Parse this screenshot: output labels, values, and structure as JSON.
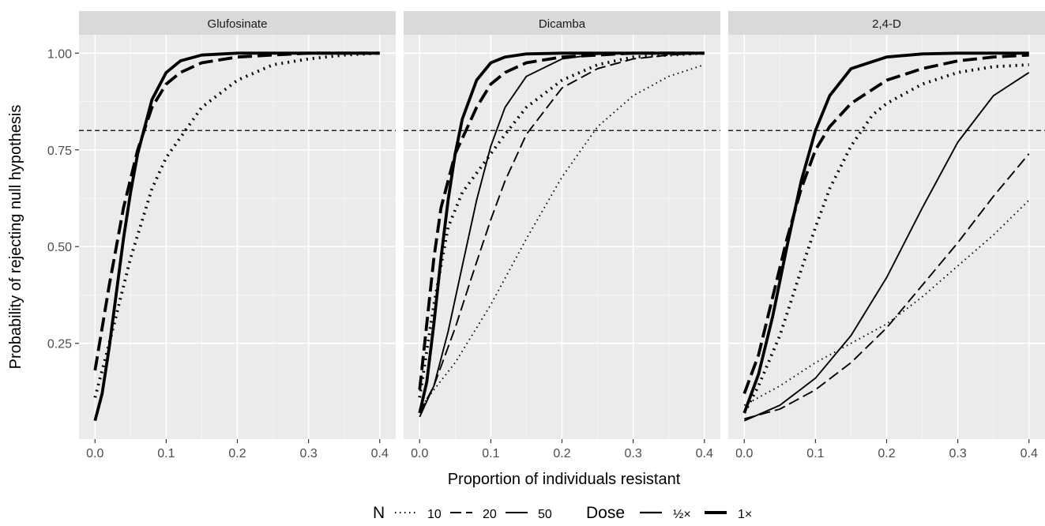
{
  "chart_data": {
    "type": "line",
    "xlabel": "Proportion of individuals resistant",
    "ylabel": "Probability of rejecting null hypothesis",
    "xlim": [
      0,
      0.4
    ],
    "ylim": [
      0.05,
      1.0
    ],
    "x_ticks": [
      "0.0",
      "0.1",
      "0.2",
      "0.3",
      "0.4"
    ],
    "y_ticks": [
      "0.25",
      "0.50",
      "0.75",
      "1.00"
    ],
    "reference_line": {
      "y": 0.8,
      "style": "dashed"
    },
    "grid": true,
    "facets": [
      "Glufosinate",
      "Dicamba",
      "2,4-D"
    ],
    "legend": {
      "position": "bottom",
      "n_title": "N",
      "n_entries": [
        {
          "label": "10",
          "dash": "dotted"
        },
        {
          "label": "20",
          "dash": "dashed"
        },
        {
          "label": "50",
          "dash": "solid"
        }
      ],
      "dose_title": "Dose",
      "dose_entries": [
        {
          "label": "½×",
          "weight": "thin"
        },
        {
          "label": "1×",
          "weight": "thick"
        }
      ]
    },
    "panels": [
      {
        "facet": "Glufosinate",
        "series": [
          {
            "n": "10",
            "dose": "1×",
            "x": [
              0,
              0.02,
              0.05,
              0.08,
              0.1,
              0.15,
              0.2,
              0.25,
              0.3,
              0.35,
              0.4
            ],
            "y": [
              0.11,
              0.25,
              0.47,
              0.65,
              0.73,
              0.86,
              0.93,
              0.97,
              0.985,
              0.995,
              1.0
            ]
          },
          {
            "n": "20",
            "dose": "1×",
            "x": [
              0,
              0.02,
              0.04,
              0.06,
              0.08,
              0.1,
              0.12,
              0.15,
              0.2,
              0.25,
              0.3,
              0.4
            ],
            "y": [
              0.18,
              0.4,
              0.6,
              0.75,
              0.86,
              0.92,
              0.95,
              0.975,
              0.99,
              0.995,
              1.0,
              1.0
            ]
          },
          {
            "n": "50",
            "dose": "1×",
            "x": [
              0,
              0.01,
              0.02,
              0.03,
              0.04,
              0.05,
              0.06,
              0.08,
              0.1,
              0.12,
              0.15,
              0.2,
              0.3,
              0.4
            ],
            "y": [
              0.05,
              0.12,
              0.24,
              0.38,
              0.52,
              0.64,
              0.74,
              0.88,
              0.95,
              0.98,
              0.995,
              1.0,
              1.0,
              1.0
            ]
          }
        ]
      },
      {
        "facet": "Dicamba",
        "series": [
          {
            "n": "10",
            "dose": "½×",
            "x": [
              0,
              0.02,
              0.05,
              0.08,
              0.1,
              0.15,
              0.2,
              0.25,
              0.3,
              0.35,
              0.4
            ],
            "y": [
              0.08,
              0.13,
              0.2,
              0.29,
              0.35,
              0.52,
              0.68,
              0.81,
              0.89,
              0.94,
              0.97
            ]
          },
          {
            "n": "20",
            "dose": "½×",
            "x": [
              0,
              0.02,
              0.05,
              0.08,
              0.1,
              0.12,
              0.15,
              0.2,
              0.25,
              0.3,
              0.35,
              0.4
            ],
            "y": [
              0.07,
              0.14,
              0.29,
              0.46,
              0.57,
              0.67,
              0.79,
              0.91,
              0.96,
              0.985,
              0.995,
              1.0
            ]
          },
          {
            "n": "50",
            "dose": "½×",
            "x": [
              0,
              0.02,
              0.04,
              0.06,
              0.08,
              0.1,
              0.12,
              0.15,
              0.2,
              0.25,
              0.3,
              0.4
            ],
            "y": [
              0.06,
              0.14,
              0.28,
              0.45,
              0.62,
              0.76,
              0.86,
              0.94,
              0.985,
              0.997,
              1.0,
              1.0
            ]
          },
          {
            "n": "10",
            "dose": "1×",
            "x": [
              0,
              0.02,
              0.04,
              0.06,
              0.08,
              0.1,
              0.12,
              0.15,
              0.2,
              0.25,
              0.3,
              0.35,
              0.4
            ],
            "y": [
              0.11,
              0.35,
              0.55,
              0.64,
              0.69,
              0.74,
              0.79,
              0.86,
              0.93,
              0.97,
              0.99,
              0.995,
              1.0
            ]
          },
          {
            "n": "20",
            "dose": "1×",
            "x": [
              0,
              0.01,
              0.02,
              0.03,
              0.05,
              0.07,
              0.08,
              0.1,
              0.12,
              0.15,
              0.2,
              0.3,
              0.4
            ],
            "y": [
              0.13,
              0.3,
              0.47,
              0.6,
              0.74,
              0.82,
              0.86,
              0.92,
              0.95,
              0.975,
              0.99,
              1.0,
              1.0
            ]
          },
          {
            "n": "50",
            "dose": "1×",
            "x": [
              0,
              0.01,
              0.02,
              0.03,
              0.04,
              0.05,
              0.06,
              0.08,
              0.1,
              0.12,
              0.15,
              0.2,
              0.3,
              0.4
            ],
            "y": [
              0.07,
              0.15,
              0.3,
              0.47,
              0.62,
              0.74,
              0.83,
              0.93,
              0.975,
              0.99,
              0.998,
              1.0,
              1.0,
              1.0
            ]
          }
        ]
      },
      {
        "facet": "2,4-D",
        "series": [
          {
            "n": "10",
            "dose": "½×",
            "x": [
              0,
              0.05,
              0.1,
              0.15,
              0.2,
              0.25,
              0.3,
              0.35,
              0.4
            ],
            "y": [
              0.09,
              0.14,
              0.2,
              0.25,
              0.3,
              0.37,
              0.45,
              0.53,
              0.62
            ]
          },
          {
            "n": "20",
            "dose": "½×",
            "x": [
              0,
              0.05,
              0.1,
              0.15,
              0.2,
              0.25,
              0.3,
              0.35,
              0.4
            ],
            "y": [
              0.055,
              0.08,
              0.13,
              0.2,
              0.29,
              0.4,
              0.51,
              0.63,
              0.74
            ]
          },
          {
            "n": "50",
            "dose": "½×",
            "x": [
              0,
              0.05,
              0.1,
              0.15,
              0.2,
              0.25,
              0.3,
              0.35,
              0.4
            ],
            "y": [
              0.05,
              0.09,
              0.16,
              0.27,
              0.42,
              0.6,
              0.77,
              0.89,
              0.95
            ]
          },
          {
            "n": "10",
            "dose": "1×",
            "x": [
              0,
              0.02,
              0.05,
              0.08,
              0.1,
              0.12,
              0.15,
              0.18,
              0.2,
              0.25,
              0.3,
              0.35,
              0.4
            ],
            "y": [
              0.07,
              0.14,
              0.27,
              0.44,
              0.55,
              0.65,
              0.76,
              0.84,
              0.87,
              0.92,
              0.95,
              0.965,
              0.97
            ]
          },
          {
            "n": "20",
            "dose": "1×",
            "x": [
              0,
              0.02,
              0.04,
              0.06,
              0.08,
              0.1,
              0.12,
              0.15,
              0.2,
              0.25,
              0.3,
              0.35,
              0.4
            ],
            "y": [
              0.12,
              0.22,
              0.37,
              0.52,
              0.65,
              0.75,
              0.81,
              0.87,
              0.93,
              0.96,
              0.98,
              0.99,
              0.995
            ]
          },
          {
            "n": "50",
            "dose": "1×",
            "x": [
              0,
              0.02,
              0.04,
              0.06,
              0.08,
              0.1,
              0.12,
              0.15,
              0.2,
              0.25,
              0.3,
              0.4
            ],
            "y": [
              0.07,
              0.17,
              0.32,
              0.5,
              0.67,
              0.8,
              0.89,
              0.96,
              0.99,
              0.998,
              1.0,
              1.0
            ]
          }
        ]
      }
    ]
  }
}
